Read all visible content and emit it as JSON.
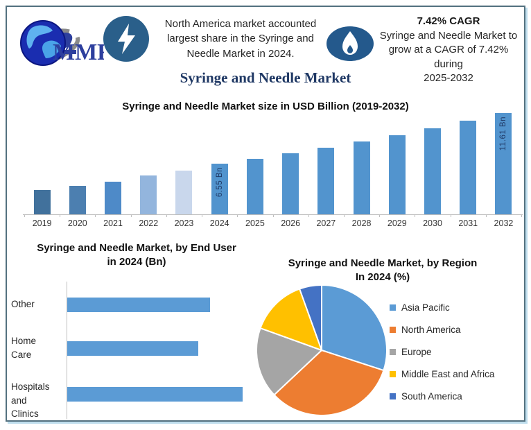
{
  "colors": {
    "frame_border": "#53717F",
    "frame_shadow": "#BFDEED",
    "title_navy": "#1F3864",
    "axis_gray": "#BFBFBF",
    "badge_blue": "#2A5F8A",
    "bar_blue": "#5B9BD5"
  },
  "header": {
    "logo": {
      "brand": "MMR",
      "icon": "globe-icon"
    },
    "badge_left_icon": "lightning-bolt-icon",
    "badge_right_icon": "flame-icon",
    "highlight_left": "North America market accounted\nlargest share in the Syringe and\nNeedle Market in 2024.",
    "cagr_heading": "7.42% CAGR",
    "cagr_body": "Syringe and Needle Market to\ngrow at a CAGR of 7.42% during\n2025-2032"
  },
  "main_title": "Syringe and Needle Market",
  "chart_data": [
    {
      "id": "market-size",
      "type": "bar",
      "title": "Syringe and Needle Market size in USD Billion (2019-2032)",
      "ylabel": "USD Billion",
      "categories": [
        "2019",
        "2020",
        "2021",
        "2022",
        "2023",
        "2024",
        "2025",
        "2026",
        "2027",
        "2028",
        "2029",
        "2030",
        "2031",
        "2032"
      ],
      "values": [
        3.85,
        4.27,
        4.72,
        5.3,
        5.81,
        6.55,
        7.04,
        7.56,
        8.12,
        8.72,
        9.37,
        10.06,
        10.81,
        11.61
      ],
      "bar_labels": {
        "2024": "6.55 Bn",
        "2032": "11.61 Bn"
      },
      "bar_colors": [
        "#41719C",
        "#4C7FB0",
        "#4E8AC8",
        "#93B5DD",
        "#C9D7EC",
        "#5294CE",
        "#5294CE",
        "#5294CE",
        "#5294CE",
        "#5294CE",
        "#5294CE",
        "#5294CE",
        "#5294CE",
        "#5294CE"
      ],
      "y_render_range": [
        1.43,
        11.61
      ],
      "grid": false
    },
    {
      "id": "end-user",
      "type": "bar",
      "orientation": "horizontal",
      "title": "Syringe and Needle Market, by End User\nin 2024 (Bn)",
      "categories": [
        "Other",
        "Home Care",
        "Hospitals and Clinics"
      ],
      "category_display": [
        "Other",
        "Home\nCare",
        "Hospitals\nand Clinics"
      ],
      "values": [
        2.08,
        1.91,
        2.56
      ],
      "values_note": "estimated from bar lengths; no data labels shown",
      "xlim": [
        0,
        2.8
      ],
      "bar_color": "#5B9BD5",
      "grid": false
    },
    {
      "id": "region",
      "type": "pie",
      "title": "Syringe and Needle Market, by Region\nIn 2024 (%)",
      "labels": [
        "Asia Pacific",
        "North America",
        "Europe",
        "Middle East and Africa",
        "South America"
      ],
      "values": [
        30,
        33,
        17.5,
        14,
        5.5
      ],
      "values_note": "estimated from slice angles; no data labels shown",
      "slice_colors": [
        "#5B9BD5",
        "#ED7D31",
        "#A5A5A5",
        "#FFC000",
        "#4472C4"
      ],
      "legend_position": "right",
      "start_angle": "top",
      "direction": "clockwise"
    }
  ]
}
